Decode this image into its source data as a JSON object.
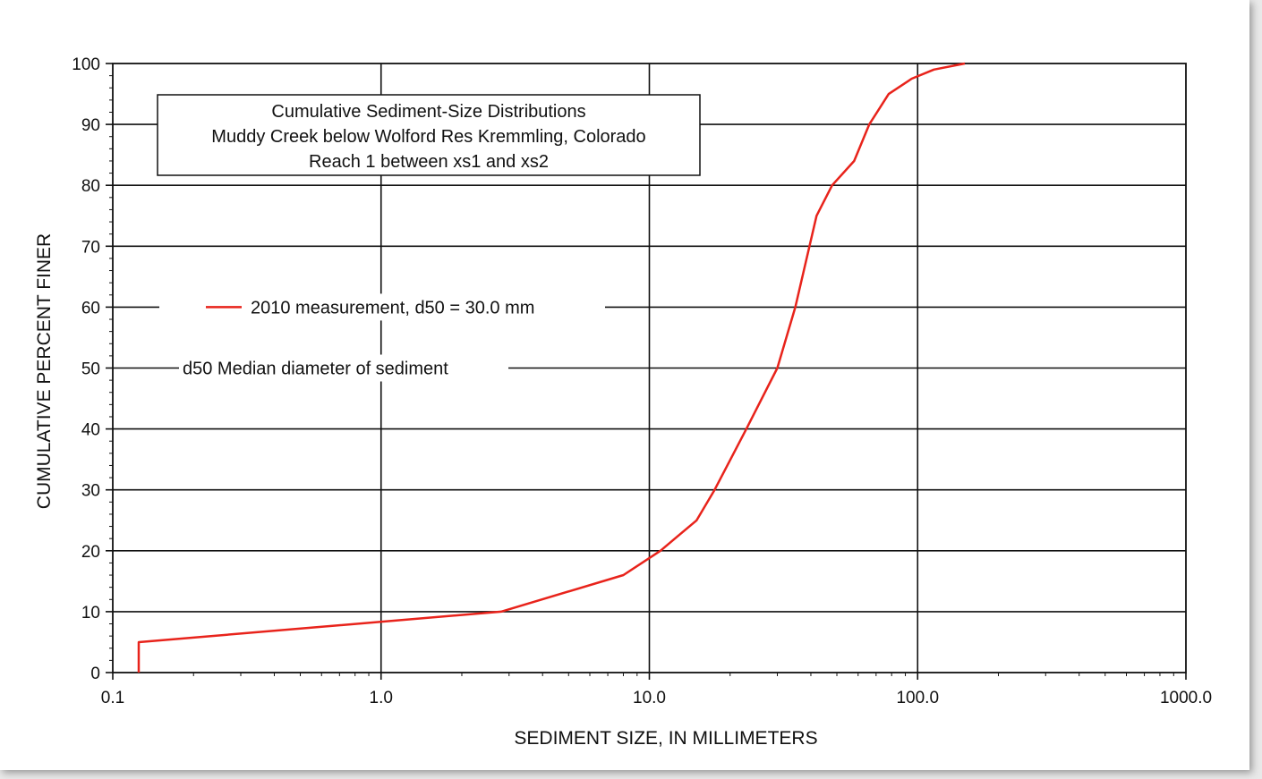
{
  "chart_data": {
    "type": "line",
    "title_lines": [
      "Cumulative  Sediment-Size  Distributions",
      "Muddy  Creek below  Wolford  Res Kremmling,  Colorado",
      "Reach 1 between xs1 and xs2"
    ],
    "xlabel": "SEDIMENT SIZE, IN MILLIMETERS",
    "ylabel": "CUMULATIVE PERCENT FINER",
    "x_scale": "log",
    "xlim": [
      0.1,
      1000
    ],
    "ylim": [
      0,
      100
    ],
    "x_ticks": [
      {
        "value": 0.1,
        "label": "0.1"
      },
      {
        "value": 1,
        "label": "1.0"
      },
      {
        "value": 10,
        "label": "10.0"
      },
      {
        "value": 100,
        "label": "100.0"
      },
      {
        "value": 1000,
        "label": "1000.0"
      }
    ],
    "y_ticks": [
      0,
      10,
      20,
      30,
      40,
      50,
      60,
      70,
      80,
      90,
      100
    ],
    "grid": true,
    "legend_entry": "2010 measurement, d50 = 30.0 mm",
    "annotation": "d50  Median diameter of sediment",
    "series": [
      {
        "name": "2010 measurement, d50 = 30.0 mm",
        "color": "#e8231b",
        "x": [
          0.125,
          0.125,
          2.8,
          8,
          11,
          15,
          17.5,
          23,
          30,
          35,
          42,
          48,
          58,
          66,
          78,
          95,
          115,
          150
        ],
        "y": [
          0,
          5,
          10,
          16,
          20,
          25,
          30,
          40,
          50,
          60,
          75,
          80,
          84,
          90,
          95,
          97.5,
          99,
          100
        ]
      }
    ]
  }
}
